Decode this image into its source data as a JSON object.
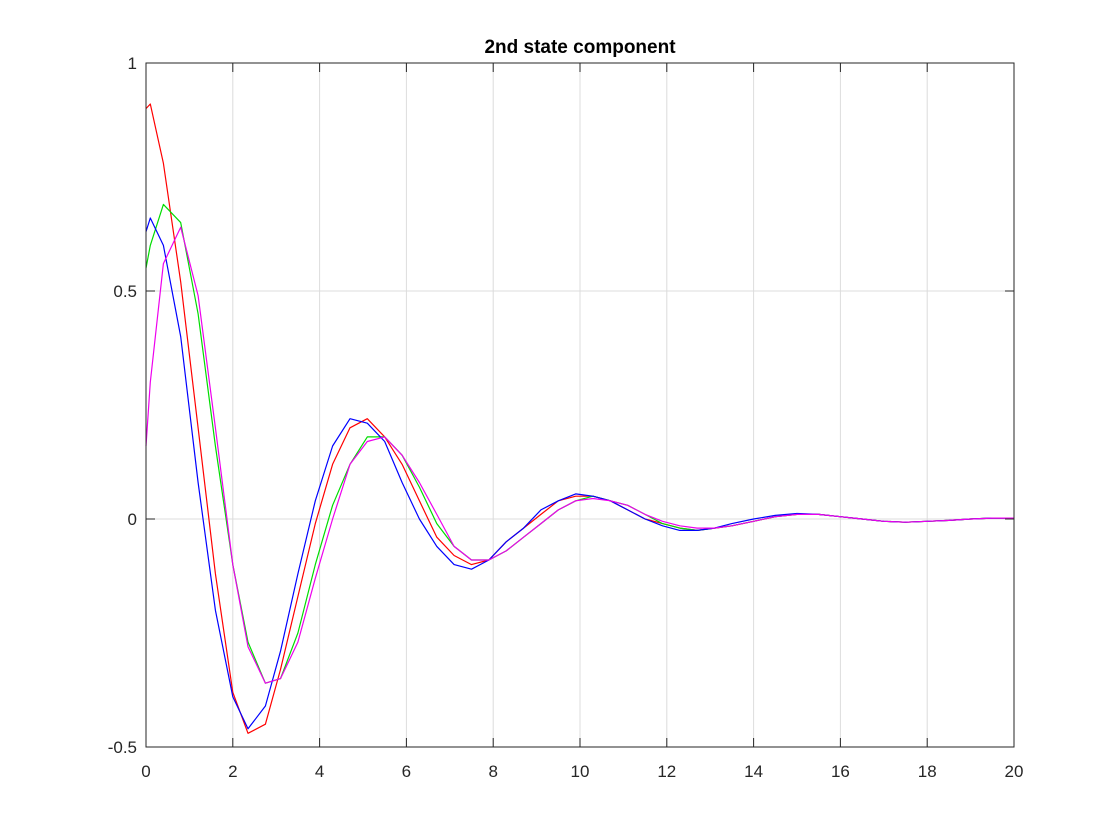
{
  "chart_data": {
    "type": "line",
    "title": "2nd state component",
    "xlabel": "",
    "ylabel": "",
    "xlim": [
      0,
      20
    ],
    "ylim": [
      -0.5,
      1
    ],
    "xticks": [
      0,
      2,
      4,
      6,
      8,
      10,
      12,
      14,
      16,
      18,
      20
    ],
    "yticks": [
      -0.5,
      0,
      0.5,
      1
    ],
    "xtick_labels": [
      "0",
      "2",
      "4",
      "6",
      "8",
      "10",
      "12",
      "14",
      "16",
      "18",
      "20"
    ],
    "ytick_labels": [
      "-0.5",
      "0",
      "0.5",
      "1"
    ],
    "grid": true,
    "legend": "none",
    "series": [
      {
        "color": "#ff0000",
        "points": [
          [
            0,
            0.9
          ],
          [
            0.1,
            0.91
          ],
          [
            0.4,
            0.78
          ],
          [
            0.8,
            0.52
          ],
          [
            1.2,
            0.2
          ],
          [
            1.6,
            -0.12
          ],
          [
            2,
            -0.38
          ],
          [
            2.35,
            -0.47
          ],
          [
            2.75,
            -0.45
          ],
          [
            3.1,
            -0.33
          ],
          [
            3.5,
            -0.17
          ],
          [
            3.9,
            -0.01
          ],
          [
            4.3,
            0.12
          ],
          [
            4.7,
            0.2
          ],
          [
            5.1,
            0.22
          ],
          [
            5.5,
            0.18
          ],
          [
            5.9,
            0.12
          ],
          [
            6.3,
            0.04
          ],
          [
            6.7,
            -0.04
          ],
          [
            7.1,
            -0.08
          ],
          [
            7.5,
            -0.1
          ],
          [
            7.9,
            -0.09
          ],
          [
            8.3,
            -0.05
          ],
          [
            8.7,
            -0.02
          ],
          [
            9.1,
            0.01
          ],
          [
            9.5,
            0.04
          ],
          [
            9.9,
            0.05
          ],
          [
            10.3,
            0.05
          ],
          [
            10.7,
            0.04
          ],
          [
            11.1,
            0.02
          ],
          [
            11.5,
            0.0
          ],
          [
            11.9,
            -0.01
          ],
          [
            12.3,
            -0.02
          ],
          [
            12.7,
            -0.025
          ],
          [
            13.1,
            -0.02
          ],
          [
            13.5,
            -0.015
          ],
          [
            14,
            -0.005
          ],
          [
            14.5,
            0.005
          ],
          [
            15,
            0.01
          ],
          [
            15.5,
            0.01
          ],
          [
            16,
            0.005
          ],
          [
            16.5,
            0.0
          ],
          [
            17,
            -0.005
          ],
          [
            17.5,
            -0.007
          ],
          [
            18,
            -0.005
          ],
          [
            18.5,
            -0.003
          ],
          [
            19,
            0.0
          ],
          [
            19.5,
            0.002
          ],
          [
            20,
            0.002
          ]
        ]
      },
      {
        "color": "#00dd00",
        "points": [
          [
            0,
            0.55
          ],
          [
            0.1,
            0.6
          ],
          [
            0.4,
            0.69
          ],
          [
            0.8,
            0.65
          ],
          [
            1.2,
            0.45
          ],
          [
            1.6,
            0.16
          ],
          [
            2,
            -0.1
          ],
          [
            2.35,
            -0.27
          ],
          [
            2.75,
            -0.36
          ],
          [
            3.1,
            -0.35
          ],
          [
            3.5,
            -0.25
          ],
          [
            3.9,
            -0.1
          ],
          [
            4.3,
            0.03
          ],
          [
            4.7,
            0.12
          ],
          [
            5.1,
            0.18
          ],
          [
            5.5,
            0.18
          ],
          [
            5.9,
            0.14
          ],
          [
            6.3,
            0.07
          ],
          [
            6.7,
            -0.01
          ],
          [
            7.1,
            -0.06
          ],
          [
            7.5,
            -0.09
          ],
          [
            7.9,
            -0.09
          ],
          [
            8.3,
            -0.07
          ],
          [
            8.7,
            -0.04
          ],
          [
            9.1,
            -0.01
          ],
          [
            9.5,
            0.02
          ],
          [
            9.9,
            0.04
          ],
          [
            10.3,
            0.05
          ],
          [
            10.7,
            0.04
          ],
          [
            11.1,
            0.03
          ],
          [
            11.5,
            0.01
          ],
          [
            11.9,
            -0.01
          ],
          [
            12.3,
            -0.02
          ],
          [
            12.7,
            -0.025
          ],
          [
            13.1,
            -0.02
          ],
          [
            13.5,
            -0.015
          ],
          [
            14,
            -0.005
          ],
          [
            14.5,
            0.005
          ],
          [
            15,
            0.01
          ],
          [
            15.5,
            0.01
          ],
          [
            16,
            0.005
          ],
          [
            16.5,
            0.0
          ],
          [
            17,
            -0.005
          ],
          [
            17.5,
            -0.007
          ],
          [
            18,
            -0.005
          ],
          [
            18.5,
            -0.003
          ],
          [
            19,
            0.0
          ],
          [
            19.5,
            0.002
          ],
          [
            20,
            0.002
          ]
        ]
      },
      {
        "color": "#0000ff",
        "points": [
          [
            0,
            0.63
          ],
          [
            0.1,
            0.66
          ],
          [
            0.4,
            0.6
          ],
          [
            0.8,
            0.4
          ],
          [
            1.2,
            0.08
          ],
          [
            1.6,
            -0.2
          ],
          [
            2,
            -0.39
          ],
          [
            2.35,
            -0.46
          ],
          [
            2.75,
            -0.41
          ],
          [
            3.1,
            -0.29
          ],
          [
            3.5,
            -0.12
          ],
          [
            3.9,
            0.04
          ],
          [
            4.3,
            0.16
          ],
          [
            4.7,
            0.22
          ],
          [
            5.1,
            0.21
          ],
          [
            5.5,
            0.17
          ],
          [
            5.9,
            0.08
          ],
          [
            6.3,
            0.0
          ],
          [
            6.7,
            -0.06
          ],
          [
            7.1,
            -0.1
          ],
          [
            7.5,
            -0.11
          ],
          [
            7.9,
            -0.09
          ],
          [
            8.3,
            -0.05
          ],
          [
            8.7,
            -0.02
          ],
          [
            9.1,
            0.02
          ],
          [
            9.5,
            0.04
          ],
          [
            9.9,
            0.055
          ],
          [
            10.3,
            0.05
          ],
          [
            10.7,
            0.04
          ],
          [
            11.1,
            0.02
          ],
          [
            11.5,
            0.0
          ],
          [
            11.9,
            -0.015
          ],
          [
            12.3,
            -0.025
          ],
          [
            12.7,
            -0.025
          ],
          [
            13.1,
            -0.02
          ],
          [
            13.5,
            -0.01
          ],
          [
            14,
            0.0
          ],
          [
            14.5,
            0.008
          ],
          [
            15,
            0.012
          ],
          [
            15.5,
            0.01
          ],
          [
            16,
            0.005
          ],
          [
            16.5,
            0.0
          ],
          [
            17,
            -0.005
          ],
          [
            17.5,
            -0.007
          ],
          [
            18,
            -0.005
          ],
          [
            18.5,
            -0.003
          ],
          [
            19,
            0.0
          ],
          [
            19.5,
            0.002
          ],
          [
            20,
            0.002
          ]
        ]
      },
      {
        "color": "#ee00ee",
        "points": [
          [
            0,
            0.16
          ],
          [
            0.1,
            0.3
          ],
          [
            0.4,
            0.56
          ],
          [
            0.8,
            0.64
          ],
          [
            1.2,
            0.49
          ],
          [
            1.6,
            0.2
          ],
          [
            2,
            -0.1
          ],
          [
            2.35,
            -0.28
          ],
          [
            2.75,
            -0.36
          ],
          [
            3.1,
            -0.35
          ],
          [
            3.5,
            -0.27
          ],
          [
            3.9,
            -0.13
          ],
          [
            4.3,
            0.0
          ],
          [
            4.7,
            0.12
          ],
          [
            5.1,
            0.17
          ],
          [
            5.5,
            0.18
          ],
          [
            5.9,
            0.14
          ],
          [
            6.3,
            0.08
          ],
          [
            6.7,
            0.01
          ],
          [
            7.1,
            -0.06
          ],
          [
            7.5,
            -0.09
          ],
          [
            7.9,
            -0.09
          ],
          [
            8.3,
            -0.07
          ],
          [
            8.7,
            -0.04
          ],
          [
            9.1,
            -0.01
          ],
          [
            9.5,
            0.02
          ],
          [
            9.9,
            0.04
          ],
          [
            10.3,
            0.045
          ],
          [
            10.7,
            0.04
          ],
          [
            11.1,
            0.03
          ],
          [
            11.5,
            0.01
          ],
          [
            11.9,
            -0.005
          ],
          [
            12.3,
            -0.015
          ],
          [
            12.7,
            -0.02
          ],
          [
            13.1,
            -0.02
          ],
          [
            13.5,
            -0.015
          ],
          [
            14,
            -0.005
          ],
          [
            14.5,
            0.005
          ],
          [
            15,
            0.01
          ],
          [
            15.5,
            0.01
          ],
          [
            16,
            0.005
          ],
          [
            16.5,
            0.0
          ],
          [
            17,
            -0.005
          ],
          [
            17.5,
            -0.007
          ],
          [
            18,
            -0.005
          ],
          [
            18.5,
            -0.003
          ],
          [
            19,
            0.0
          ],
          [
            19.5,
            0.002
          ],
          [
            20,
            0.002
          ]
        ]
      }
    ]
  }
}
